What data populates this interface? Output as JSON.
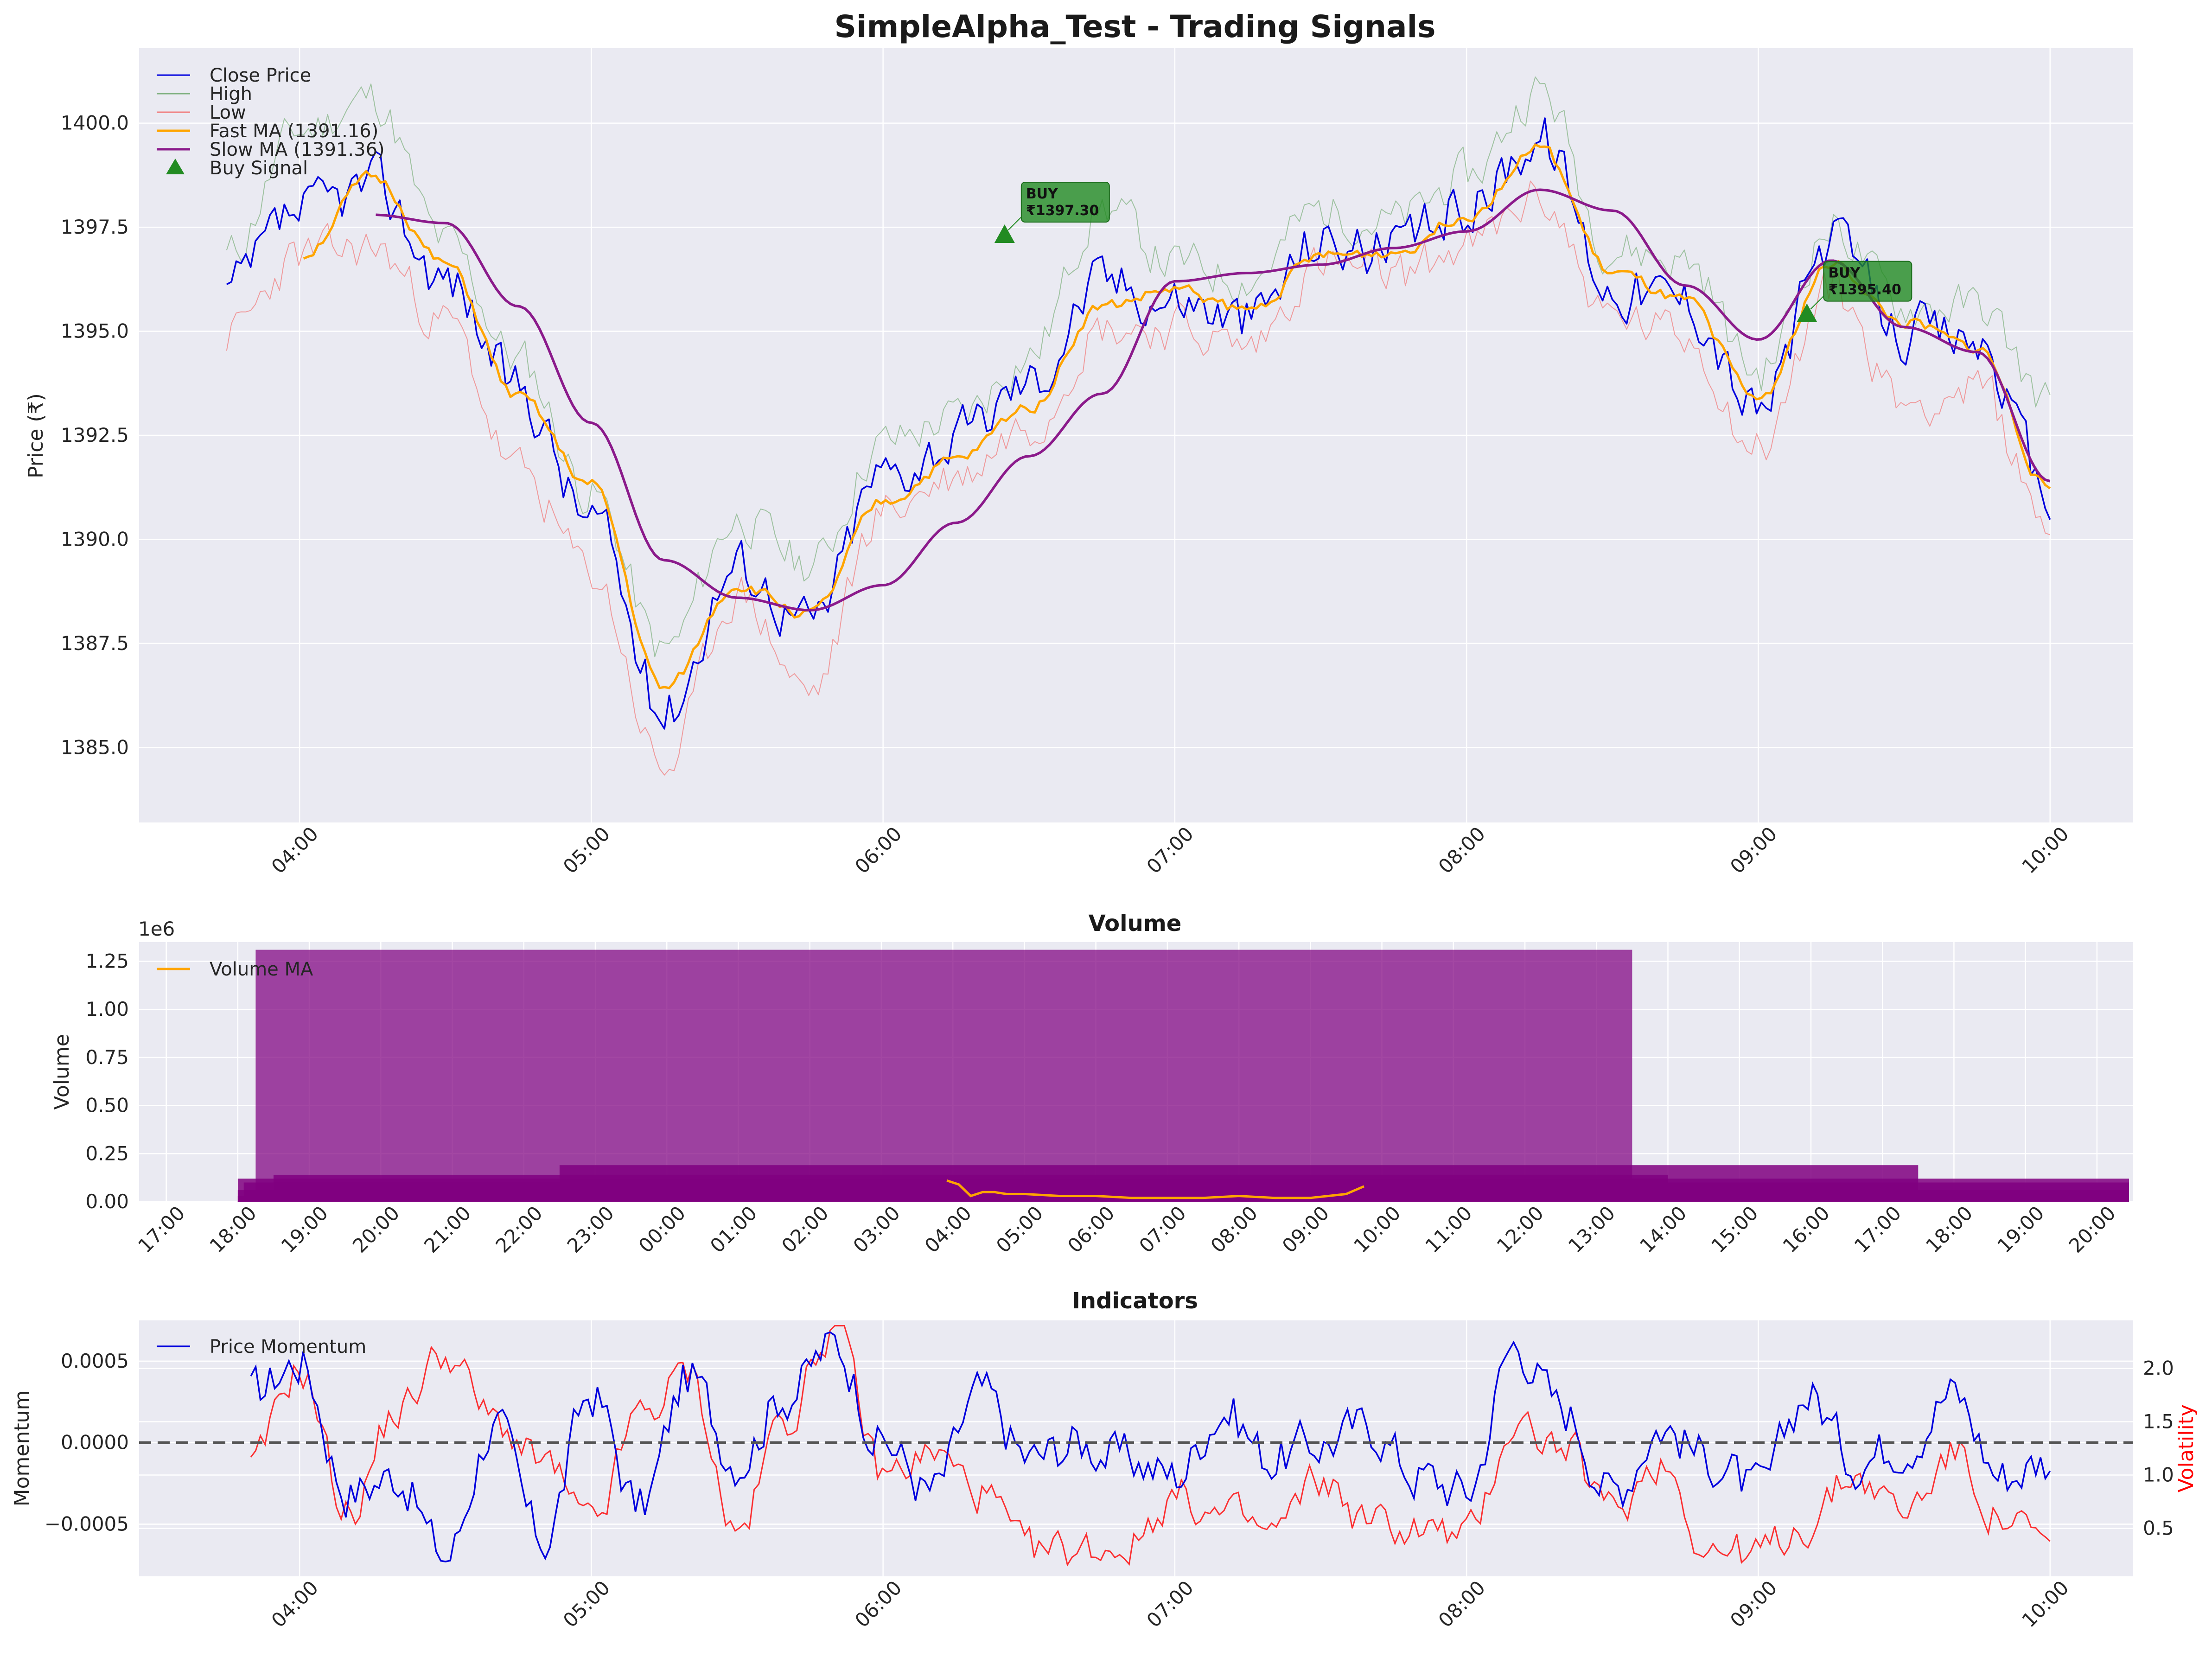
{
  "figure": {
    "title": "SimpleAlpha_Test - Trading Signals"
  },
  "colors": {
    "panel_bg": "#eaeaf2",
    "grid": "#ffffff",
    "close": "#0000dd",
    "high": "#7fb07f",
    "low": "#f08080",
    "fast_ma": "#ffa500",
    "slow_ma": "#8b1a8b",
    "buy": "#228b22",
    "volume_bar": "#800080",
    "volume_ma": "#ffa500",
    "momentum": "#0000dd",
    "volatility": "#ff0000",
    "zero_line": "#555555"
  },
  "chart_data": [
    {
      "type": "line",
      "title": "SimpleAlpha_Test - Trading Signals",
      "xlabel": "",
      "ylabel": "Price (₹)",
      "ylim": [
        1383.2,
        1401.8
      ],
      "xlim": [
        "03:27",
        "10:17"
      ],
      "grid": true,
      "legend_position": "top-left",
      "x_ticks": [
        "04:00",
        "05:00",
        "06:00",
        "07:00",
        "08:00",
        "09:00",
        "10:00"
      ],
      "y_ticks": [
        "1385.0",
        "1387.5",
        "1390.0",
        "1392.5",
        "1395.0",
        "1397.5",
        "1400.0"
      ],
      "x_anchor_times": [
        "03:45",
        "04:00",
        "04:15",
        "04:30",
        "04:45",
        "05:00",
        "05:15",
        "05:30",
        "05:45",
        "06:00",
        "06:15",
        "06:30",
        "06:45",
        "07:00",
        "07:15",
        "07:30",
        "07:45",
        "08:00",
        "08:15",
        "08:30",
        "08:45",
        "09:00",
        "09:15",
        "09:30",
        "09:45",
        "10:00"
      ],
      "series": [
        {
          "name": "Close Price",
          "values": [
            1395.9,
            1397.8,
            1398.5,
            1396.3,
            1393.6,
            1390.5,
            1385.9,
            1389.4,
            1388.0,
            1391.6,
            1392.4,
            1393.8,
            1396.2,
            1395.8,
            1395.3,
            1397.2,
            1396.9,
            1398.0,
            1399.7,
            1396.1,
            1395.8,
            1393.1,
            1397.1,
            1395.0,
            1394.8,
            1391.0
          ]
        },
        {
          "name": "High",
          "values": [
            1396.8,
            1399.8,
            1400.6,
            1397.1,
            1394.3,
            1391.1,
            1387.3,
            1390.5,
            1389.4,
            1392.3,
            1392.9,
            1394.4,
            1398.0,
            1396.6,
            1396.3,
            1397.9,
            1397.6,
            1398.7,
            1400.8,
            1397.0,
            1396.7,
            1394.0,
            1397.5,
            1395.6,
            1395.6,
            1393.3
          ]
        },
        {
          "name": "Low",
          "values": [
            1394.9,
            1396.8,
            1397.0,
            1395.2,
            1391.6,
            1389.2,
            1384.5,
            1388.7,
            1386.3,
            1390.7,
            1391.5,
            1392.8,
            1395.1,
            1395.1,
            1394.6,
            1396.6,
            1396.3,
            1397.0,
            1398.2,
            1395.3,
            1394.9,
            1392.2,
            1396.0,
            1393.3,
            1393.6,
            1390.4
          ]
        },
        {
          "name": "Fast MA (1391.16)",
          "values": [
            null,
            1396.8,
            1398.7,
            1396.6,
            1393.4,
            1391.3,
            1386.4,
            1388.9,
            1388.2,
            1390.9,
            1391.9,
            1393.2,
            1395.6,
            1396.0,
            1395.5,
            1396.8,
            1396.9,
            1397.8,
            1399.4,
            1396.4,
            1395.7,
            1393.4,
            1396.6,
            1395.2,
            1394.6,
            1391.2
          ]
        },
        {
          "name": "Slow MA (1391.36)",
          "values": [
            null,
            null,
            1397.8,
            1397.6,
            1395.6,
            1392.8,
            1389.5,
            1388.6,
            1388.3,
            1388.9,
            1390.4,
            1392.0,
            1393.5,
            1396.2,
            1396.4,
            1396.6,
            1397.0,
            1397.4,
            1398.4,
            1397.9,
            1396.1,
            1394.8,
            1396.7,
            1395.1,
            1394.5,
            1391.4
          ]
        }
      ],
      "buy_signals": [
        {
          "time": "06:25",
          "price": 1397.3,
          "label": "BUY\n₹1397.30"
        },
        {
          "time": "09:10",
          "price": 1395.4,
          "label": "BUY\n₹1395.40"
        }
      ],
      "legend": [
        "Close Price",
        "High",
        "Low",
        "Fast MA (1391.16)",
        "Slow MA (1391.36)",
        "Buy Signal"
      ]
    },
    {
      "type": "bar",
      "title": "Volume",
      "ylabel": "Volume",
      "y_scale_label": "1e6",
      "ylim": [
        0,
        1.35
      ],
      "grid": true,
      "legend_position": "top-left",
      "x_ticks": [
        "17:00",
        "18:00",
        "19:00",
        "20:00",
        "21:00",
        "22:00",
        "23:00",
        "00:00",
        "01:00",
        "02:00",
        "03:00",
        "04:00",
        "05:00",
        "06:00",
        "07:00",
        "08:00",
        "09:00",
        "10:00",
        "11:00",
        "12:00",
        "13:00",
        "14:00",
        "15:00",
        "16:00",
        "17:00",
        "18:00",
        "19:00",
        "20:00"
      ],
      "y_ticks": [
        "0.00",
        "0.25",
        "0.50",
        "0.75",
        "1.00",
        "1.25"
      ],
      "bars": [
        {
          "start": "18:15",
          "end": "13:30",
          "value": 1.31
        },
        {
          "start": "22:30",
          "end": "17:30",
          "value": 0.19
        },
        {
          "start": "18:30",
          "end": "14:00",
          "value": 0.14
        },
        {
          "start": "18:00",
          "end": "19:30",
          "value": 0.12
        },
        {
          "start": "18:05",
          "end": "19:15",
          "value": 0.1
        },
        {
          "start": "18:00",
          "end": "19:35",
          "value": 0.06
        },
        {
          "start": "18:00",
          "end": "19:40",
          "value": 0.03
        }
      ],
      "series": [
        {
          "name": "Volume MA",
          "x": [
            "03:55",
            "04:05",
            "04:15",
            "04:25",
            "04:35",
            "04:45",
            "05:00",
            "05:30",
            "06:00",
            "06:30",
            "07:00",
            "07:30",
            "08:00",
            "08:30",
            "09:00",
            "09:30",
            "09:45"
          ],
          "values": [
            0.11,
            0.09,
            0.03,
            0.05,
            0.05,
            0.04,
            0.04,
            0.03,
            0.03,
            0.02,
            0.02,
            0.02,
            0.03,
            0.02,
            0.02,
            0.04,
            0.08
          ]
        }
      ]
    },
    {
      "type": "line",
      "title": "Indicators",
      "ylabel": "Momentum",
      "ylabel_right": "Volatility",
      "ylim": [
        -0.00082,
        0.00075
      ],
      "ylim_right": [
        0.05,
        2.45
      ],
      "grid": true,
      "legend_position": "top-left",
      "x_ticks": [
        "04:00",
        "05:00",
        "06:00",
        "07:00",
        "08:00",
        "09:00",
        "10:00"
      ],
      "y_ticks": [
        "−0.0005",
        "0.0000",
        "0.0005"
      ],
      "y_ticks_right": [
        "0.5",
        "1.0",
        "1.5",
        "2.0"
      ],
      "x_anchor_times": [
        "03:50",
        "04:00",
        "04:10",
        "04:20",
        "04:30",
        "04:40",
        "04:50",
        "05:00",
        "05:10",
        "05:20",
        "05:30",
        "05:40",
        "05:50",
        "06:00",
        "06:10",
        "06:20",
        "06:30",
        "06:40",
        "06:50",
        "07:00",
        "07:10",
        "07:20",
        "07:30",
        "07:40",
        "07:50",
        "08:00",
        "08:10",
        "08:20",
        "08:30",
        "08:40",
        "08:50",
        "09:00",
        "09:10",
        "09:20",
        "09:30",
        "09:40",
        "09:50",
        "10:00"
      ],
      "series": [
        {
          "name": "Price Momentum",
          "values": [
            0.0003,
            0.0005,
            -0.0003,
            -0.0002,
            -0.0007,
            0.0001,
            -0.0006,
            0.0003,
            -0.0004,
            0.0004,
            -0.0001,
            0.0003,
            0.0006,
            0.0,
            -0.0003,
            0.0003,
            -0.0001,
            0.0,
            -0.0001,
            -0.0002,
            0.0002,
            -0.0001,
            0.0,
            0.0001,
            -0.0002,
            -0.0003,
            0.0006,
            0.0002,
            -0.0003,
            0.0001,
            -0.0001,
            -0.0003,
            0.0003,
            -0.0001,
            0.0,
            0.0003,
            -0.0002,
            -0.0001
          ]
        },
        {
          "name": "Volatility",
          "values": [
            1.05,
            2.0,
            0.65,
            1.6,
            2.15,
            1.5,
            1.1,
            0.5,
            1.55,
            1.95,
            0.45,
            1.55,
            2.4,
            1.0,
            1.2,
            0.85,
            0.25,
            0.3,
            0.35,
            0.8,
            0.6,
            0.45,
            0.95,
            0.55,
            0.5,
            0.4,
            1.5,
            1.25,
            0.65,
            1.15,
            0.3,
            0.25,
            0.55,
            1.0,
            0.65,
            1.2,
            0.6,
            0.3
          ]
        }
      ],
      "legend": [
        "Price Momentum"
      ]
    }
  ]
}
